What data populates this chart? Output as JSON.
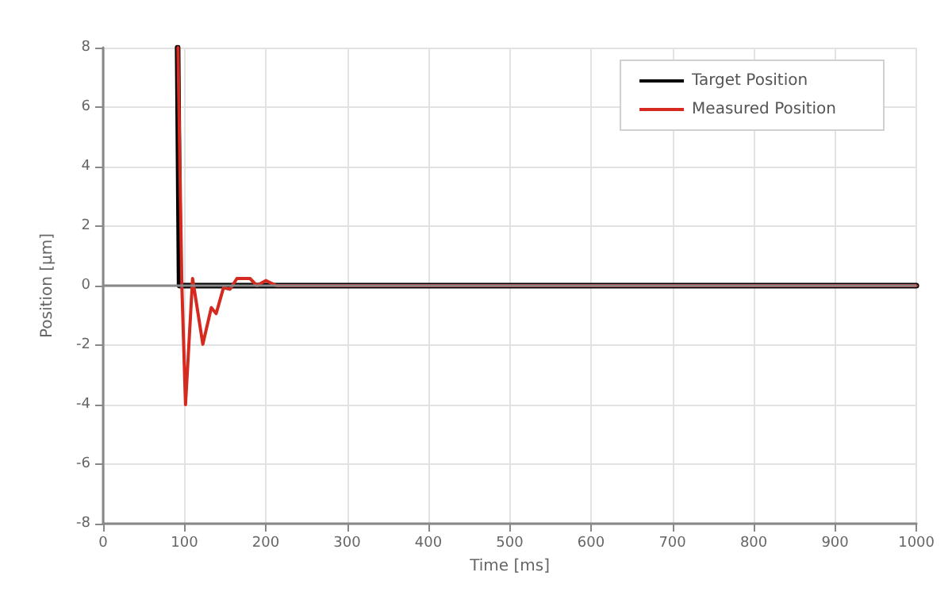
{
  "chart_data": {
    "type": "line",
    "xlabel": "Time [ms]",
    "ylabel": "Position [µm]",
    "xlim": [
      0,
      1000
    ],
    "xticks": [
      0,
      100,
      200,
      300,
      400,
      500,
      600,
      700,
      800,
      900,
      1000
    ],
    "ylim": [
      -8,
      8
    ],
    "yticks": [
      -8,
      -6,
      -4,
      -2,
      0,
      2,
      4,
      6,
      8
    ],
    "grid": true,
    "legend": "top right",
    "marker": "none",
    "line_style": "solid",
    "series": [
      {
        "name": "Target Position",
        "color": "#000000",
        "x": [
          91.6,
          94,
          1000
        ],
        "values": [
          8,
          0,
          0
        ]
      },
      {
        "name": "Measured Position",
        "color": "#d42a20",
        "x": [
          92,
          96.8,
          101.3,
          110,
          122.6,
          133,
          139,
          148,
          156,
          164.5,
          180.6,
          189,
          200,
          213,
          300,
          1000
        ],
        "values": [
          8,
          0,
          -4,
          0.24,
          -1.97,
          -0.74,
          -0.94,
          -0.07,
          -0.12,
          0.24,
          0.24,
          0,
          0.17,
          0,
          0,
          0
        ]
      }
    ]
  }
}
